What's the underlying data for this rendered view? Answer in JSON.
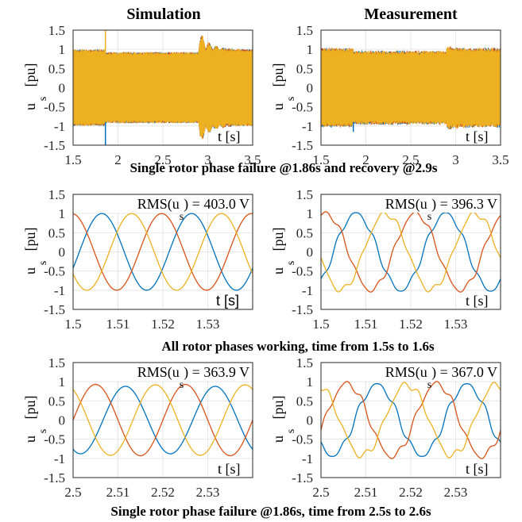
{
  "column_titles": [
    "Simulation",
    "Measurement"
  ],
  "row_captions": [
    "Single rotor phase failure @1.86s and recovery @2.9s",
    "All rotor phases working, time from 1.5s to 1.6s",
    "Single rotor phase failure @1.86s, time from 2.5s to 2.6s"
  ],
  "colors": {
    "phase_a": "#0072BD",
    "phase_b": "#D95319",
    "phase_c": "#EDB120"
  },
  "chart_data": [
    {
      "id": "r1c1",
      "type": "line",
      "ylabel": "u",
      "ylabel_sub": "s",
      "ylabel_unit": "[pu]",
      "xlabel": "t [s]",
      "rms_label": "",
      "xlim": [
        1.5,
        3.5
      ],
      "ylim": [
        -1.5,
        1.5
      ],
      "xticks": [
        "1.5",
        "2",
        "2.5",
        "3",
        "3.5"
      ],
      "yticks": [
        "1.5",
        "1",
        "0.5",
        "0",
        "-0.5",
        "-1",
        "-1.5"
      ],
      "signal": {
        "kind": "envelope",
        "fault_at": 1.86,
        "recovery_at": 2.9,
        "amp_normal": 1.0,
        "amp_fault": 0.93,
        "transient_peak": 1.5,
        "source": "simulation"
      },
      "series": [
        {
          "name": "",
          "color": "#0072BD"
        },
        {
          "name": "",
          "color": "#D95319"
        },
        {
          "name": "",
          "color": "#EDB120"
        }
      ]
    },
    {
      "id": "r1c2",
      "type": "line",
      "ylabel": "u",
      "ylabel_sub": "s",
      "ylabel_unit": "[pu]",
      "xlabel": "t [s]",
      "rms_label": "",
      "xlim": [
        1.5,
        3.5
      ],
      "ylim": [
        -1.5,
        1.5
      ],
      "xticks": [
        "1.5",
        "2",
        "2.5",
        "3",
        "3.5"
      ],
      "yticks": [
        "1.5",
        "1",
        "0.5",
        "0",
        "-0.5",
        "-1",
        "-1.5"
      ],
      "signal": {
        "kind": "envelope",
        "fault_at": 1.86,
        "recovery_at": 2.9,
        "amp_normal": 1.02,
        "amp_fault": 0.95,
        "transient_peak": 1.1,
        "source": "measurement"
      },
      "series": [
        {
          "name": "",
          "color": "#0072BD"
        },
        {
          "name": "",
          "color": "#D95319"
        },
        {
          "name": "",
          "color": "#EDB120"
        }
      ]
    },
    {
      "id": "r2c1",
      "type": "line",
      "ylabel": "u",
      "ylabel_sub": "s",
      "ylabel_unit": "[pu]",
      "xlabel": "t [s]",
      "rms_prefix": "RMS(u",
      "rms_sub": "s",
      "rms_suffix": ") = 403.0 V",
      "xlim": [
        1.5,
        1.54
      ],
      "ylim": [
        -1.5,
        1.5
      ],
      "xticks": [
        "1.5",
        "1.51",
        "1.52",
        "1.53"
      ],
      "tick_values": [
        1.5,
        1.51,
        1.52,
        1.53
      ],
      "yticks": [
        "1.5",
        "1",
        "0.5",
        "0",
        "-0.5",
        "-1",
        "-1.5"
      ],
      "signal": {
        "kind": "sine",
        "frequency_hz": 50,
        "series_phase_deg": [
          -25,
          95,
          215
        ],
        "amplitudes": [
          1.0,
          1.0,
          1.0
        ],
        "distortion": 0
      },
      "series": [
        {
          "name": "",
          "color": "#0072BD"
        },
        {
          "name": "",
          "color": "#D95319"
        },
        {
          "name": "",
          "color": "#EDB120"
        }
      ]
    },
    {
      "id": "r2c2",
      "type": "line",
      "ylabel": "u",
      "ylabel_sub": "s",
      "ylabel_unit": "[pu]",
      "xlabel": "t [s]",
      "rms_prefix": "RMS(u",
      "rms_sub": "s",
      "rms_suffix": ") = 396.3 V",
      "xlim": [
        1.5,
        1.54
      ],
      "ylim": [
        -1.5,
        1.5
      ],
      "xticks": [
        "1.5",
        "1.51",
        "1.52",
        "1.53"
      ],
      "tick_values": [
        1.5,
        1.51,
        1.52,
        1.53
      ],
      "yticks": [
        "1.5",
        "1",
        "0.5",
        "0",
        "-0.5",
        "-1",
        "-1.5"
      ],
      "signal": {
        "kind": "sine",
        "frequency_hz": 50,
        "series_phase_deg": [
          -50,
          70,
          190
        ],
        "amplitudes": [
          1.0,
          1.0,
          1.0
        ],
        "distortion": 0.06
      },
      "series": [
        {
          "name": "",
          "color": "#0072BD"
        },
        {
          "name": "",
          "color": "#D95319"
        },
        {
          "name": "",
          "color": "#EDB120"
        }
      ]
    },
    {
      "id": "r3c1",
      "type": "line",
      "ylabel": "u",
      "ylabel_sub": "s",
      "ylabel_unit": "[pu]",
      "xlabel": "t [s]",
      "rms_prefix": "RMS(u",
      "rms_sub": "s",
      "rms_suffix": ") = 363.9 V",
      "xlim": [
        2.5,
        2.54
      ],
      "ylim": [
        -1.5,
        1.5
      ],
      "xticks": [
        "2.5",
        "2.51",
        "2.52",
        "2.53"
      ],
      "tick_values": [
        2.5,
        2.51,
        2.52,
        2.53
      ],
      "yticks": [
        "1.5",
        "1",
        "0.5",
        "0",
        "-0.5",
        "-1",
        "-1.5"
      ],
      "signal": {
        "kind": "sine",
        "frequency_hz": 50,
        "series_phase_deg": [
          240,
          0,
          120
        ],
        "amplitudes": [
          0.88,
          0.93,
          0.92
        ],
        "distortion": 0
      },
      "series": [
        {
          "name": "",
          "color": "#0072BD"
        },
        {
          "name": "",
          "color": "#D95319"
        },
        {
          "name": "",
          "color": "#EDB120"
        }
      ]
    },
    {
      "id": "r3c2",
      "type": "line",
      "ylabel": "u",
      "ylabel_sub": "s",
      "ylabel_unit": "[pu]",
      "xlabel": "t [s]",
      "rms_prefix": "RMS(u",
      "rms_sub": "s",
      "rms_suffix": ") = 367.0 V",
      "xlim": [
        2.5,
        2.54
      ],
      "ylim": [
        -1.5,
        1.5
      ],
      "xticks": [
        "2.5",
        "2.51",
        "2.52",
        "2.53"
      ],
      "tick_values": [
        2.5,
        2.51,
        2.52,
        2.53
      ],
      "yticks": [
        "1.5",
        "1",
        "0.5",
        "0",
        "-0.5",
        "-1",
        "-1.5"
      ],
      "signal": {
        "kind": "sine",
        "frequency_hz": 50,
        "series_phase_deg": [
          225,
          -15,
          105
        ],
        "amplitudes": [
          0.92,
          0.95,
          0.93
        ],
        "distortion": 0.07
      },
      "series": [
        {
          "name": "",
          "color": "#0072BD"
        },
        {
          "name": "",
          "color": "#D95319"
        },
        {
          "name": "",
          "color": "#EDB120"
        }
      ]
    }
  ]
}
